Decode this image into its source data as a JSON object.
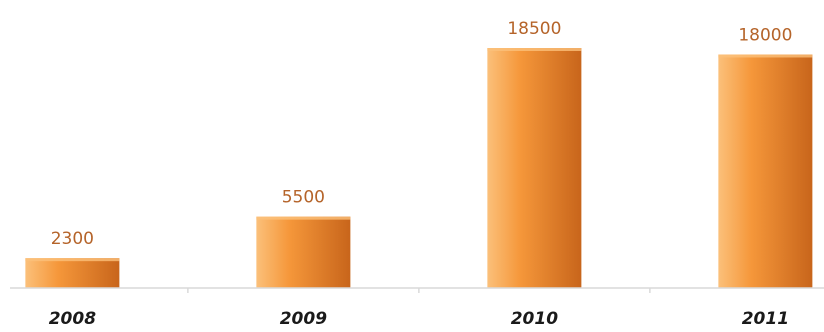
{
  "chart_data": {
    "type": "bar",
    "categories": [
      "2008",
      "2009",
      "2010",
      "2011"
    ],
    "values": [
      2300,
      5500,
      18500,
      18000
    ],
    "value_labels": [
      "2300",
      "5500",
      "18500",
      "18000"
    ],
    "title": "",
    "xlabel": "",
    "ylabel": "",
    "ylim": [
      0,
      18500
    ],
    "grid": false,
    "legend": "none",
    "colors": {
      "bar_light": "#fbc07a",
      "bar_mid": "#f5973a",
      "bar_dark": "#c8651b",
      "value_label": "#b5642a",
      "axis": "#d9d9d9",
      "tick_label": "#1a1a1a"
    }
  }
}
